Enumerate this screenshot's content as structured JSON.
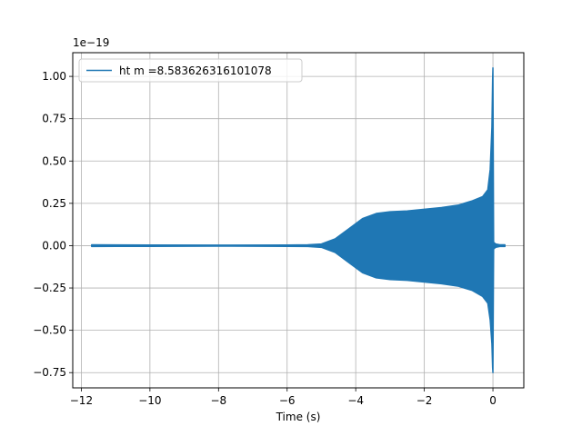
{
  "chart_data": {
    "type": "line",
    "title": "",
    "xlabel": "Time (s)",
    "ylabel": "",
    "y_offset_label": "1e−19",
    "xlim": [
      -12.25,
      0.9
    ],
    "ylim": [
      -0.84,
      1.14
    ],
    "grid": true,
    "legend_position": "upper-left",
    "x_ticks": [
      -12,
      -10,
      -8,
      -6,
      -4,
      -2,
      0
    ],
    "x_tick_labels": [
      "−12",
      "−10",
      "−8",
      "−6",
      "−4",
      "−2",
      "0"
    ],
    "y_ticks": [
      1.0,
      0.75,
      0.5,
      0.25,
      0.0,
      -0.25,
      -0.5,
      -0.75
    ],
    "y_tick_labels": [
      "1.00",
      "0.75",
      "0.50",
      "0.25",
      "0.00",
      "−0.25",
      "−0.50",
      "−0.75"
    ],
    "series": [
      {
        "name": "ht m =8.583626316101078",
        "color": "#1f77b4",
        "envelope": {
          "x": [
            -11.7,
            -10.0,
            -8.0,
            -6.0,
            -5.4,
            -5.0,
            -4.6,
            -4.2,
            -3.8,
            -3.4,
            -3.0,
            -2.5,
            -2.0,
            -1.5,
            -1.0,
            -0.6,
            -0.3,
            -0.15,
            -0.08,
            -0.03,
            -0.01,
            0.0,
            0.02,
            0.08,
            0.2,
            0.35
          ],
          "upper": [
            0.005,
            0.004,
            0.003,
            0.004,
            0.005,
            0.01,
            0.04,
            0.1,
            0.16,
            0.19,
            0.2,
            0.205,
            0.215,
            0.225,
            0.24,
            0.265,
            0.29,
            0.33,
            0.45,
            0.7,
            0.98,
            1.05,
            0.02,
            0.01,
            0.005,
            0.005
          ],
          "lower": [
            -0.005,
            -0.004,
            -0.003,
            -0.004,
            -0.005,
            -0.01,
            -0.04,
            -0.1,
            -0.16,
            -0.19,
            -0.2,
            -0.205,
            -0.215,
            -0.225,
            -0.24,
            -0.265,
            -0.3,
            -0.34,
            -0.44,
            -0.58,
            -0.72,
            -0.75,
            -0.02,
            -0.01,
            -0.005,
            -0.005
          ]
        }
      }
    ]
  }
}
